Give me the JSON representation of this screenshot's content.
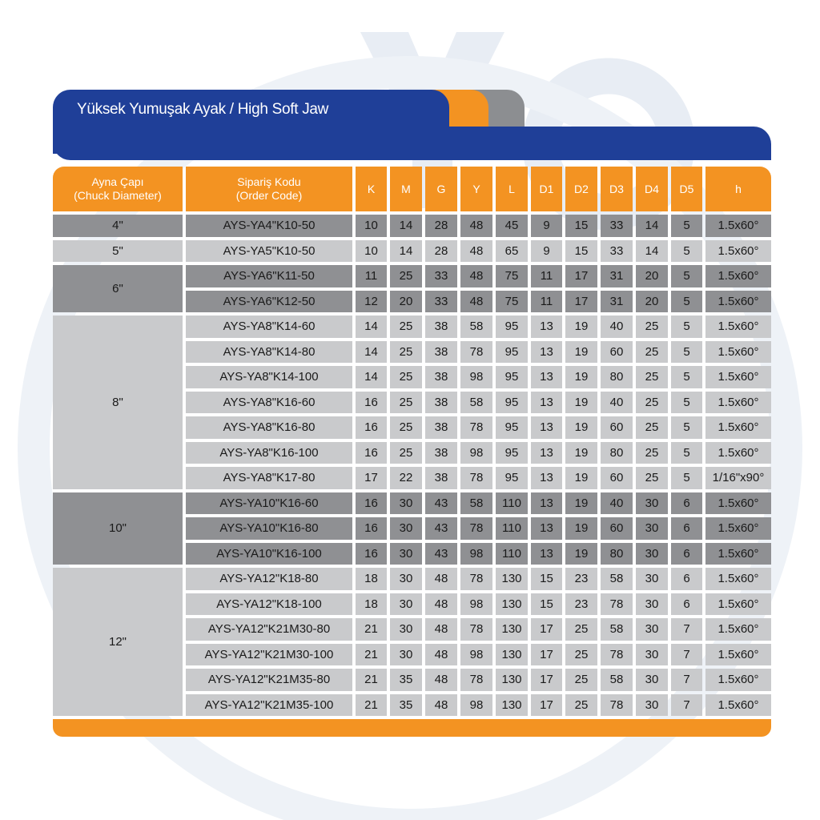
{
  "title": "Yüksek Yumuşak Ayak / High Soft Jaw",
  "colors": {
    "blue": "#1f3f98",
    "orange": "#f39322",
    "dark_row": "#8f9093",
    "light_row": "#c9cacc"
  },
  "headers": [
    "Ayna Çapı\n(Chuck Diameter)",
    "Sipariş Kodu\n(Order Code)",
    "K",
    "M",
    "G",
    "Y",
    "L",
    "D1",
    "D2",
    "D3",
    "D4",
    "D5",
    "h"
  ],
  "groups": [
    {
      "diameter": "4\"",
      "shade": "dark",
      "rows": [
        [
          "AYS-YA4\"K10-50",
          "10",
          "14",
          "28",
          "48",
          "45",
          "9",
          "15",
          "33",
          "14",
          "5",
          "1.5x60°"
        ]
      ]
    },
    {
      "diameter": "5\"",
      "shade": "light",
      "rows": [
        [
          "AYS-YA5\"K10-50",
          "10",
          "14",
          "28",
          "48",
          "65",
          "9",
          "15",
          "33",
          "14",
          "5",
          "1.5x60°"
        ]
      ]
    },
    {
      "diameter": "6\"",
      "shade": "dark",
      "rows": [
        [
          "AYS-YA6\"K11-50",
          "11",
          "25",
          "33",
          "48",
          "75",
          "11",
          "17",
          "31",
          "20",
          "5",
          "1.5x60°"
        ],
        [
          "AYS-YA6\"K12-50",
          "12",
          "20",
          "33",
          "48",
          "75",
          "11",
          "17",
          "31",
          "20",
          "5",
          "1.5x60°"
        ]
      ]
    },
    {
      "diameter": "8\"",
      "shade": "light",
      "rows": [
        [
          "AYS-YA8\"K14-60",
          "14",
          "25",
          "38",
          "58",
          "95",
          "13",
          "19",
          "40",
          "25",
          "5",
          "1.5x60°"
        ],
        [
          "AYS-YA8\"K14-80",
          "14",
          "25",
          "38",
          "78",
          "95",
          "13",
          "19",
          "60",
          "25",
          "5",
          "1.5x60°"
        ],
        [
          "AYS-YA8\"K14-100",
          "14",
          "25",
          "38",
          "98",
          "95",
          "13",
          "19",
          "80",
          "25",
          "5",
          "1.5x60°"
        ],
        [
          "AYS-YA8\"K16-60",
          "16",
          "25",
          "38",
          "58",
          "95",
          "13",
          "19",
          "40",
          "25",
          "5",
          "1.5x60°"
        ],
        [
          "AYS-YA8\"K16-80",
          "16",
          "25",
          "38",
          "78",
          "95",
          "13",
          "19",
          "60",
          "25",
          "5",
          "1.5x60°"
        ],
        [
          "AYS-YA8\"K16-100",
          "16",
          "25",
          "38",
          "98",
          "95",
          "13",
          "19",
          "80",
          "25",
          "5",
          "1.5x60°"
        ],
        [
          "AYS-YA8\"K17-80",
          "17",
          "22",
          "38",
          "78",
          "95",
          "13",
          "19",
          "60",
          "25",
          "5",
          "1/16\"x90°"
        ]
      ]
    },
    {
      "diameter": "10\"",
      "shade": "dark",
      "rows": [
        [
          "AYS-YA10\"K16-60",
          "16",
          "30",
          "43",
          "58",
          "110",
          "13",
          "19",
          "40",
          "30",
          "6",
          "1.5x60°"
        ],
        [
          "AYS-YA10\"K16-80",
          "16",
          "30",
          "43",
          "78",
          "110",
          "13",
          "19",
          "60",
          "30",
          "6",
          "1.5x60°"
        ],
        [
          "AYS-YA10\"K16-100",
          "16",
          "30",
          "43",
          "98",
          "110",
          "13",
          "19",
          "80",
          "30",
          "6",
          "1.5x60°"
        ]
      ]
    },
    {
      "diameter": "12\"",
      "shade": "light",
      "rows": [
        [
          "AYS-YA12\"K18-80",
          "18",
          "30",
          "48",
          "78",
          "130",
          "15",
          "23",
          "58",
          "30",
          "6",
          "1.5x60°"
        ],
        [
          "AYS-YA12\"K18-100",
          "18",
          "30",
          "48",
          "98",
          "130",
          "15",
          "23",
          "78",
          "30",
          "6",
          "1.5x60°"
        ],
        [
          "AYS-YA12\"K21M30-80",
          "21",
          "30",
          "48",
          "78",
          "130",
          "17",
          "25",
          "58",
          "30",
          "7",
          "1.5x60°"
        ],
        [
          "AYS-YA12\"K21M30-100",
          "21",
          "30",
          "48",
          "98",
          "130",
          "17",
          "25",
          "78",
          "30",
          "7",
          "1.5x60°"
        ],
        [
          "AYS-YA12\"K21M35-80",
          "21",
          "35",
          "48",
          "78",
          "130",
          "17",
          "25",
          "58",
          "30",
          "7",
          "1.5x60°"
        ],
        [
          "AYS-YA12\"K21M35-100",
          "21",
          "35",
          "48",
          "98",
          "130",
          "17",
          "25",
          "78",
          "30",
          "7",
          "1.5x60°"
        ]
      ]
    }
  ]
}
